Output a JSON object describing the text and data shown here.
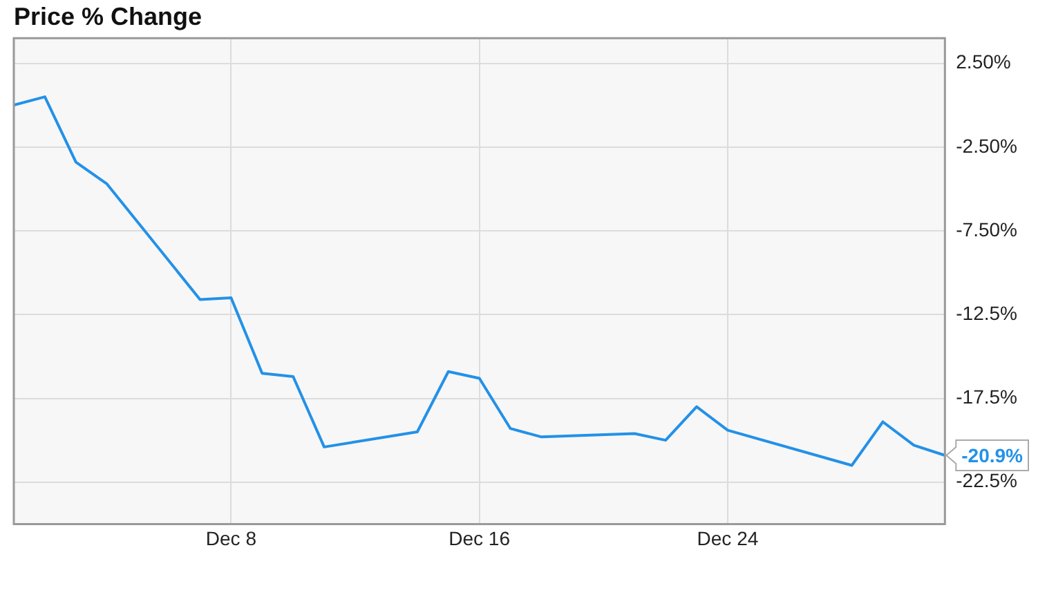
{
  "chart_data": {
    "type": "line",
    "title": "Price % Change",
    "x": [
      "--12-01",
      "--12-02",
      "--12-03",
      "--12-04",
      "--12-07",
      "--12-08",
      "--12-09",
      "--12-10",
      "--12-11",
      "--12-14",
      "--12-15",
      "--12-16",
      "--12-17",
      "--12-18",
      "--12-21",
      "--12-22",
      "--12-23",
      "--12-24",
      "--12-28",
      "--12-29",
      "--12-30",
      "--12-31"
    ],
    "series": [
      {
        "color": "#2391e8",
        "values": [
          0.0,
          0.5,
          -3.4,
          -4.7,
          -11.6,
          -11.5,
          -16.0,
          -16.2,
          -20.4,
          -19.5,
          -15.9,
          -16.3,
          -19.3,
          -19.8,
          -19.6,
          -20.0,
          -18.0,
          -19.4,
          -21.5,
          -18.9,
          -20.3,
          -20.9
        ]
      }
    ],
    "xlim": [
      "--12-01",
      "--12-31"
    ],
    "xticks": [
      {
        "value": "--12-08",
        "label": "Dec 8"
      },
      {
        "value": "--12-16",
        "label": "Dec 16"
      },
      {
        "value": "--12-24",
        "label": "Dec 24"
      }
    ],
    "ylim": [
      -25,
      4
    ],
    "yticks": [
      {
        "value": 2.5,
        "label": "2.50%"
      },
      {
        "value": -2.5,
        "label": "-2.50%"
      },
      {
        "value": -7.5,
        "label": "-7.50%"
      },
      {
        "value": -12.5,
        "label": "-12.5%"
      },
      {
        "value": -17.5,
        "label": "-17.5%"
      },
      {
        "value": -22.5,
        "label": "-22.5%"
      }
    ],
    "annotations": [
      {
        "text": "-20.9%",
        "x": "--12-31",
        "y": -20.9
      }
    ],
    "grid": true,
    "legend": false,
    "marker": "none",
    "line_style": "solid"
  }
}
